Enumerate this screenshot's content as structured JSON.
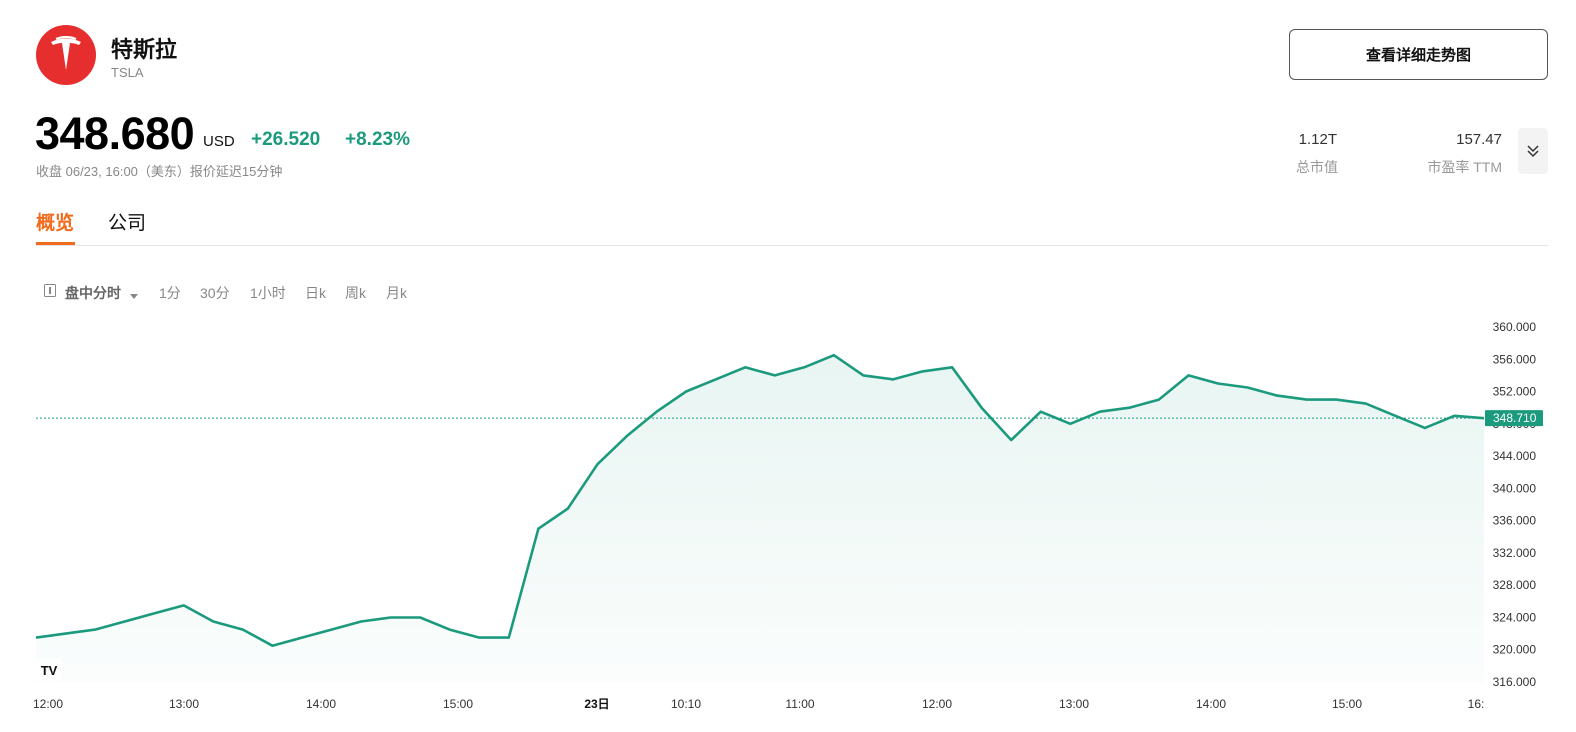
{
  "stock": {
    "name": "特斯拉",
    "ticker": "TSLA",
    "price": "348.680",
    "currency": "USD",
    "change": "+26.520",
    "change_pct": "+8.23%",
    "close_info": "收盘 06/23, 16:00（美东）报价延迟15分钟"
  },
  "trend_button": "查看详细走势图",
  "stats": [
    {
      "value": "1.12T",
      "label": "总市值"
    },
    {
      "value": "157.47",
      "label": "市盈率 TTM"
    }
  ],
  "tabs": [
    {
      "label": "概览",
      "active": true
    },
    {
      "label": "公司",
      "active": false
    }
  ],
  "periods": [
    {
      "label": "盘中分时",
      "selected": true
    },
    {
      "label": "1分"
    },
    {
      "label": "30分"
    },
    {
      "label": "1小时"
    },
    {
      "label": "日k"
    },
    {
      "label": "周k"
    },
    {
      "label": "月k"
    }
  ],
  "colors": {
    "accent": "#f26b1d",
    "up": "#1b9a7d",
    "logo": "#e62e2e"
  },
  "icons": [
    "tesla-logo-icon",
    "chevron-double-down-icon",
    "panel-icon",
    "caret-down-icon",
    "tradingview-logo-icon"
  ],
  "chart_data": {
    "type": "area",
    "last_price_label": "348.710",
    "y_ticks": [
      "360.000",
      "356.000",
      "352.000",
      "348.000",
      "344.000",
      "340.000",
      "336.000",
      "332.000",
      "328.000",
      "324.000",
      "320.000",
      "316.000"
    ],
    "x_ticks": [
      "12:00",
      "13:00",
      "14:00",
      "15:00",
      "23日",
      "10:10",
      "11:00",
      "12:00",
      "13:00",
      "14:00",
      "15:00",
      "16:"
    ],
    "ylim": [
      316,
      360
    ],
    "x": [
      "12:00",
      "12:15",
      "12:30",
      "12:45",
      "13:00",
      "13:15",
      "13:30",
      "13:45",
      "14:00",
      "14:15",
      "14:30",
      "14:45",
      "15:00",
      "15:15",
      "15:30",
      "15:45",
      "16:00",
      "09:30",
      "09:45",
      "10:00",
      "10:10",
      "10:20",
      "10:30",
      "10:40",
      "10:50",
      "11:00",
      "11:10",
      "11:20",
      "11:30",
      "11:40",
      "11:50",
      "12:00",
      "12:10",
      "12:20",
      "12:30",
      "12:40",
      "12:50",
      "13:00",
      "13:15",
      "13:30",
      "13:45",
      "14:00",
      "14:15",
      "14:30",
      "14:45",
      "15:00",
      "15:15",
      "15:30",
      "15:45",
      "16:00"
    ],
    "values": [
      321.5,
      322.0,
      322.5,
      323.5,
      324.5,
      325.5,
      323.5,
      322.5,
      320.5,
      321.5,
      322.5,
      323.5,
      324.0,
      324.0,
      322.5,
      321.5,
      321.5,
      335.0,
      337.5,
      343.0,
      346.5,
      349.5,
      352.0,
      353.5,
      355.0,
      354.0,
      355.0,
      356.5,
      354.0,
      353.5,
      354.5,
      355.0,
      350.0,
      346.0,
      349.5,
      348.0,
      349.5,
      350.0,
      351.0,
      354.0,
      353.0,
      352.5,
      351.5,
      351.0,
      351.0,
      350.5,
      349.0,
      347.5,
      349.0,
      348.7
    ],
    "grid": false,
    "legend": "none"
  }
}
